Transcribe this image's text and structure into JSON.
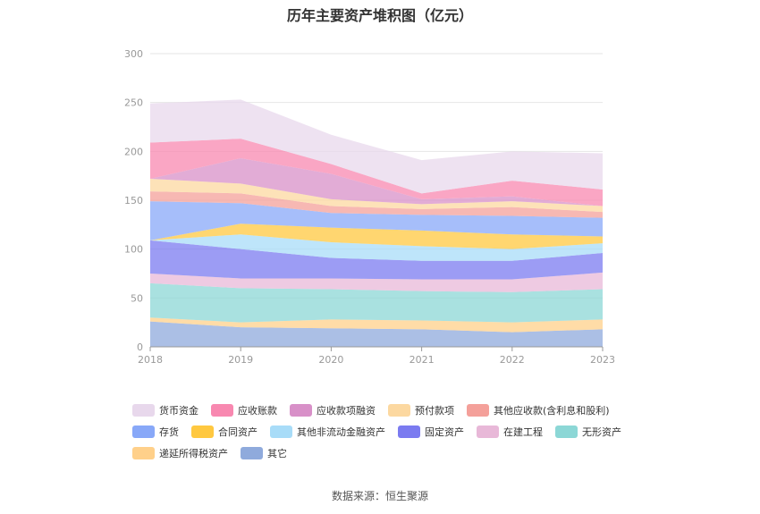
{
  "chart_data": {
    "type": "area",
    "stacked": true,
    "title": "历年主要资产堆积图（亿元）",
    "x": [
      "2018",
      "2019",
      "2020",
      "2021",
      "2022",
      "2023"
    ],
    "ylim": [
      0,
      300
    ],
    "yticks": [
      0,
      50,
      100,
      150,
      200,
      250,
      300
    ],
    "grid": true,
    "legend_position": "bottom",
    "series": [
      {
        "name": "其它",
        "color": "#8faadc",
        "values": [
          26,
          20,
          19,
          18,
          15,
          18
        ]
      },
      {
        "name": "递延所得税资产",
        "color": "#ffd08a",
        "values": [
          4,
          5,
          9,
          9,
          10,
          10
        ]
      },
      {
        "name": "无形资产",
        "color": "#8cd7d6",
        "values": [
          35,
          35,
          31,
          30,
          31,
          31
        ]
      },
      {
        "name": "在建工程",
        "color": "#e8b8d8",
        "values": [
          10,
          10,
          11,
          12,
          13,
          17
        ]
      },
      {
        "name": "固定资产",
        "color": "#7b7bf0",
        "values": [
          34,
          30,
          21,
          19,
          19,
          20
        ]
      },
      {
        "name": "其他非流动金融资产",
        "color": "#a8dcf8",
        "values": [
          0,
          15,
          16,
          15,
          12,
          10
        ]
      },
      {
        "name": "合同资产",
        "color": "#ffc840",
        "values": [
          0,
          11,
          15,
          16,
          15,
          7
        ]
      },
      {
        "name": "存货",
        "color": "#88a8f8",
        "values": [
          40,
          21,
          15,
          16,
          19,
          19
        ]
      },
      {
        "name": "其他应收款(含利息和股利)",
        "color": "#f4a09a",
        "values": [
          10,
          10,
          7,
          6,
          9,
          6
        ]
      },
      {
        "name": "预付款项",
        "color": "#fcd8a0",
        "values": [
          13,
          10,
          7,
          5,
          6,
          6
        ]
      },
      {
        "name": "应收款项融资",
        "color": "#d890c8",
        "values": [
          0,
          26,
          26,
          5,
          5,
          0
        ]
      },
      {
        "name": "应收账款",
        "color": "#f888b0",
        "values": [
          37,
          20,
          10,
          6,
          16,
          17
        ]
      },
      {
        "name": "货币资金",
        "color": "#e8d8ec",
        "values": [
          40,
          40,
          30,
          34,
          30,
          37
        ]
      }
    ],
    "legend_order": [
      "货币资金",
      "应收账款",
      "应收款项融资",
      "预付款项",
      "其他应收款(含利息和股利)",
      "存货",
      "合同资产",
      "其他非流动金融资产",
      "固定资产",
      "在建工程",
      "无形资产",
      "递延所得税资产",
      "其它"
    ]
  },
  "source": "数据来源：恒生聚源"
}
